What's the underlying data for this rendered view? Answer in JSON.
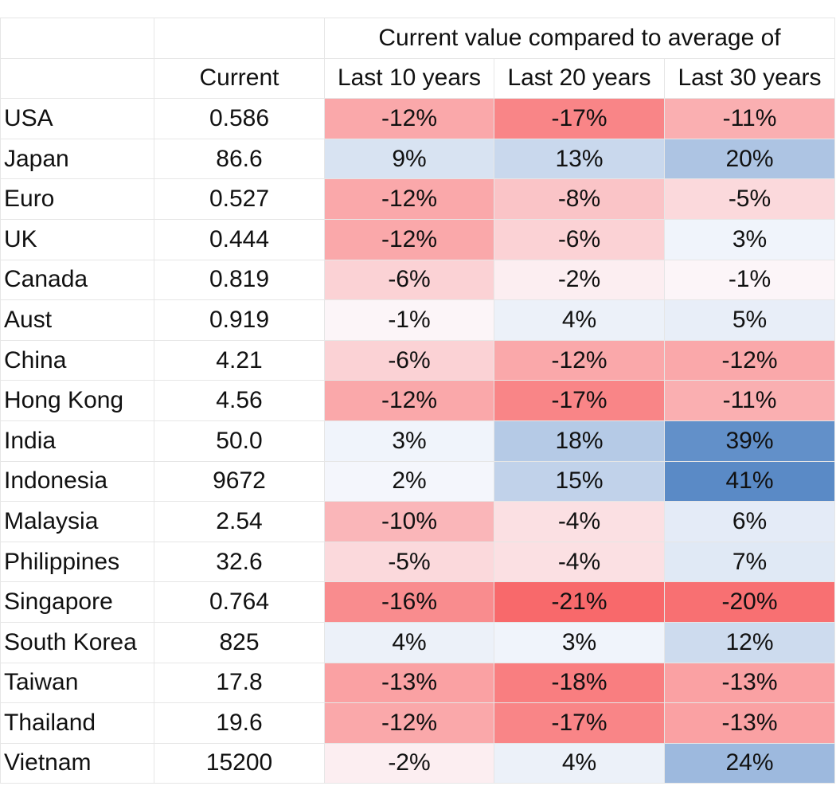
{
  "chart_data": {
    "type": "table",
    "group_header": "Current value compared to average of",
    "columns": [
      "Current",
      "Last 10 years",
      "Last 20 years",
      "Last 30 years"
    ],
    "rows": [
      {
        "country": "USA",
        "current": "0.586",
        "values": [
          -12,
          -17,
          -11
        ]
      },
      {
        "country": "Japan",
        "current": "86.6",
        "values": [
          9,
          13,
          20
        ]
      },
      {
        "country": "Euro",
        "current": "0.527",
        "values": [
          -12,
          -8,
          -5
        ]
      },
      {
        "country": "UK",
        "current": "0.444",
        "values": [
          -12,
          -6,
          3
        ]
      },
      {
        "country": "Canada",
        "current": "0.819",
        "values": [
          -6,
          -2,
          -1
        ]
      },
      {
        "country": "Aust",
        "current": "0.919",
        "values": [
          -1,
          4,
          5
        ]
      },
      {
        "country": "China",
        "current": "4.21",
        "values": [
          -6,
          -12,
          -12
        ]
      },
      {
        "country": "Hong Kong",
        "current": "4.56",
        "values": [
          -12,
          -17,
          -11
        ]
      },
      {
        "country": "India",
        "current": "50.0",
        "values": [
          3,
          18,
          39
        ]
      },
      {
        "country": "Indonesia",
        "current": "9672",
        "values": [
          2,
          15,
          41
        ]
      },
      {
        "country": "Malaysia",
        "current": "2.54",
        "values": [
          -10,
          -4,
          6
        ]
      },
      {
        "country": "Philippines",
        "current": "32.6",
        "values": [
          -5,
          -4,
          7
        ]
      },
      {
        "country": "Singapore",
        "current": "0.764",
        "values": [
          -16,
          -21,
          -20
        ]
      },
      {
        "country": "South Korea",
        "current": "825",
        "values": [
          4,
          3,
          12
        ]
      },
      {
        "country": "Taiwan",
        "current": "17.8",
        "values": [
          -13,
          -18,
          -13
        ]
      },
      {
        "country": "Thailand",
        "current": "19.6",
        "values": [
          -12,
          -17,
          -13
        ]
      },
      {
        "country": "Vietnam",
        "current": "15200",
        "values": [
          -2,
          4,
          24
        ]
      }
    ],
    "color_scale": {
      "negative": "#f8696b",
      "neutral": "#fcfcff",
      "positive": "#5a8ac6",
      "min": -21,
      "max": 41
    }
  }
}
